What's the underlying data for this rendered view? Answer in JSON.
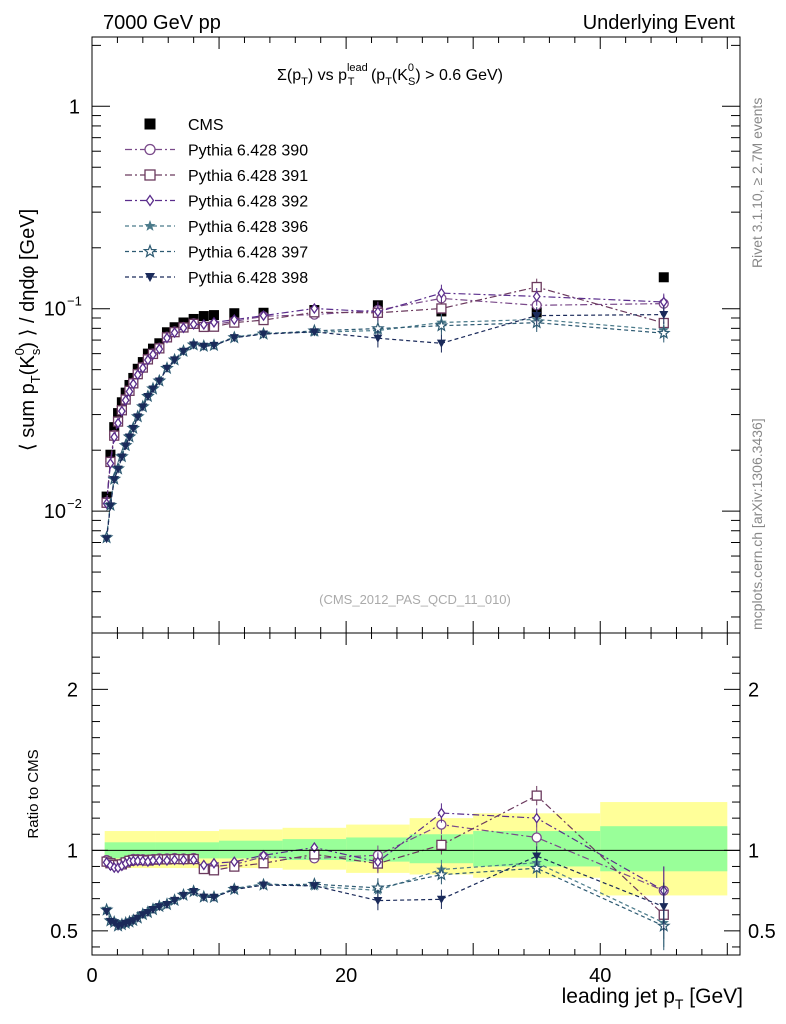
{
  "header": {
    "left": "7000 GeV pp",
    "right": "Underlying Event"
  },
  "plot_title": {
    "main": "Σ(p",
    "sub_T1": "T",
    "mid": ") vs p",
    "sup_lead": "lead",
    "sub_T2": "T",
    "tail1": " (p",
    "sub_T3": "T",
    "tail2": "(K",
    "sup_0": "0",
    "sub_S": "S",
    "tail3": ") > 0.6 GeV)"
  },
  "ylabel_top": {
    "a": "⟨ sum p",
    "sub_T": "T",
    "b": "(K",
    "sup_0": "0",
    "sub_s": "s",
    "c": ") ⟩ / dηdφ [GeV]"
  },
  "ylabel_bottom": "Ratio to CMS",
  "xlabel": {
    "a": "leading jet p",
    "sub": "T",
    "b": " [GeV]"
  },
  "side_text_top": "Rivet 3.1.10, ≥ 2.7M events",
  "side_text_bottom": "mcplots.cern.ch [arXiv:1306.3436]",
  "watermark": "(CMS_2012_PAS_QCD_11_010)",
  "colors": {
    "cms": "#000000",
    "p390": "#7a4a8a",
    "p391": "#6b3a5e",
    "p392": "#5a2d8c",
    "p396": "#4a7a8a",
    "p397": "#2d5a72",
    "p398": "#1a2a5a",
    "band_inner": "#99ff99",
    "band_outer": "#ffff99"
  },
  "chart_data": [
    {
      "type": "scatter",
      "panel": "main",
      "yscale": "log",
      "xlim": [
        0,
        51
      ],
      "ylim": [
        0.0025,
        2.2
      ],
      "y_ticklabels": [
        {
          "value": 1,
          "label": "1"
        },
        {
          "value": 0.1,
          "label": "10",
          "exp": "−1"
        },
        {
          "value": 0.01,
          "label": "10",
          "exp": "−2"
        }
      ],
      "x": [
        1.15,
        1.45,
        1.75,
        2.05,
        2.35,
        2.65,
        2.95,
        3.25,
        3.6,
        4.0,
        4.4,
        4.8,
        5.3,
        5.9,
        6.5,
        7.2,
        8.0,
        8.8,
        9.6,
        11.2,
        13.5,
        17.5,
        22.5,
        27.5,
        35.0,
        45.0
      ],
      "series": [
        {
          "name": "CMS",
          "marker": "filled-square",
          "line": "none",
          "values": [
            0.0118,
            0.019,
            0.026,
            0.0305,
            0.0345,
            0.0385,
            0.042,
            0.0455,
            0.0505,
            0.0545,
            0.06,
            0.0635,
            0.0675,
            0.0765,
            0.081,
            0.0855,
            0.089,
            0.092,
            0.093,
            0.095,
            0.0955,
            0.0985,
            0.104,
            0.097,
            0.096,
            0.143
          ]
        },
        {
          "name": "Pythia 6.428 390",
          "marker": "open-circle",
          "line": "dashdot",
          "values": [
            0.0111,
            0.0176,
            0.0238,
            0.0278,
            0.0317,
            0.0358,
            0.0395,
            0.0431,
            0.0478,
            0.0515,
            0.0565,
            0.0601,
            0.0641,
            0.0727,
            0.0771,
            0.0812,
            0.0847,
            0.0818,
            0.0837,
            0.0866,
            0.0917,
            0.0935,
            0.0985,
            0.1125,
            0.104,
            0.106
          ]
        },
        {
          "name": "Pythia 6.428 391",
          "marker": "open-square",
          "line": "dashdot",
          "values": [
            0.011,
            0.0175,
            0.0236,
            0.0277,
            0.0315,
            0.0356,
            0.0393,
            0.0428,
            0.0475,
            0.0512,
            0.0562,
            0.0598,
            0.0637,
            0.0722,
            0.0766,
            0.0808,
            0.0842,
            0.0813,
            0.0815,
            0.0854,
            0.0879,
            0.096,
            0.0955,
            0.1003,
            0.128,
            0.085
          ]
        },
        {
          "name": "Pythia 6.428 392",
          "marker": "open-diamond",
          "line": "dashdot",
          "values": [
            0.0109,
            0.0172,
            0.0232,
            0.0272,
            0.0312,
            0.0353,
            0.039,
            0.0425,
            0.0472,
            0.0509,
            0.0558,
            0.0594,
            0.0632,
            0.0717,
            0.0762,
            0.0804,
            0.0837,
            0.0836,
            0.0856,
            0.0883,
            0.0925,
            0.1003,
            0.0965,
            0.1195,
            0.115,
            0.108
          ]
        },
        {
          "name": "Pythia 6.428 396",
          "marker": "filled-star",
          "line": "dashed",
          "values": [
            0.0075,
            0.0108,
            0.0146,
            0.0164,
            0.0188,
            0.0213,
            0.0236,
            0.026,
            0.0296,
            0.0331,
            0.0373,
            0.0406,
            0.0444,
            0.0512,
            0.0563,
            0.0621,
            0.0668,
            0.0657,
            0.0664,
            0.0725,
            0.0757,
            0.0765,
            0.0781,
            0.0855,
            0.0886,
            0.0785
          ]
        },
        {
          "name": "Pythia 6.428 397",
          "marker": "open-star",
          "line": "dashed",
          "values": [
            0.0074,
            0.0107,
            0.0144,
            0.0162,
            0.0186,
            0.0211,
            0.0233,
            0.0257,
            0.0293,
            0.0328,
            0.0369,
            0.0402,
            0.044,
            0.0508,
            0.0559,
            0.0617,
            0.0663,
            0.0653,
            0.0659,
            0.072,
            0.075,
            0.0778,
            0.0798,
            0.0824,
            0.0853,
            0.0757
          ]
        },
        {
          "name": "Pythia 6.428 398",
          "marker": "filled-triangle-down",
          "line": "dashed",
          "values": [
            0.0073,
            0.0106,
            0.0143,
            0.0161,
            0.0185,
            0.021,
            0.0232,
            0.0256,
            0.0292,
            0.0327,
            0.0368,
            0.0401,
            0.0439,
            0.0507,
            0.0558,
            0.0616,
            0.0662,
            0.0652,
            0.0658,
            0.0719,
            0.0749,
            0.0768,
            0.0715,
            0.0675,
            0.0925,
            0.0935
          ]
        }
      ]
    },
    {
      "type": "scatter",
      "panel": "ratio",
      "yscale": "linear",
      "xlim": [
        0,
        51
      ],
      "ylim": [
        0.35,
        2.35
      ],
      "x_ticklabels": [
        "0",
        "20",
        "40"
      ],
      "x_ticks": [
        0,
        20,
        40
      ],
      "y_ticklabels": [
        "0.5",
        "1",
        "2"
      ],
      "y_ticks": [
        0.5,
        1,
        2
      ],
      "bands": {
        "edges": [
          1.0,
          5.0,
          10.0,
          15.0,
          20.0,
          25.0,
          30.0,
          40.0,
          50.0
        ],
        "inner": [
          [
            0.95,
            1.05
          ],
          [
            0.95,
            1.05
          ],
          [
            0.95,
            1.06
          ],
          [
            0.94,
            1.07
          ],
          [
            0.93,
            1.08
          ],
          [
            0.92,
            1.1
          ],
          [
            0.9,
            1.12
          ],
          [
            0.87,
            1.15
          ],
          [
            0.85,
            1.2
          ]
        ],
        "outer": [
          [
            0.89,
            1.12
          ],
          [
            0.89,
            1.12
          ],
          [
            0.89,
            1.13
          ],
          [
            0.88,
            1.14
          ],
          [
            0.86,
            1.16
          ],
          [
            0.85,
            1.2
          ],
          [
            0.83,
            1.23
          ],
          [
            0.72,
            1.3
          ],
          [
            0.68,
            1.42
          ]
        ]
      },
      "series": [
        {
          "name": "Pythia 6.428 390",
          "values": [
            0.94,
            0.925,
            0.915,
            0.912,
            0.919,
            0.93,
            0.94,
            0.947,
            0.946,
            0.945,
            0.942,
            0.946,
            0.95,
            0.95,
            0.952,
            0.95,
            0.952,
            0.89,
            0.9,
            0.912,
            0.96,
            0.95,
            0.97,
            1.16,
            1.08,
            0.75
          ]
        },
        {
          "name": "Pythia 6.428 391",
          "values": [
            0.93,
            0.92,
            0.91,
            0.908,
            0.913,
            0.925,
            0.935,
            0.94,
            0.94,
            0.94,
            0.937,
            0.942,
            0.944,
            0.944,
            0.946,
            0.945,
            0.946,
            0.884,
            0.876,
            0.899,
            0.92,
            0.975,
            0.918,
            1.034,
            1.34,
            0.6
          ]
        },
        {
          "name": "Pythia 6.428 392",
          "values": [
            0.925,
            0.905,
            0.893,
            0.891,
            0.904,
            0.918,
            0.929,
            0.934,
            0.934,
            0.934,
            0.93,
            0.936,
            0.936,
            0.937,
            0.941,
            0.94,
            0.94,
            0.909,
            0.92,
            0.929,
            0.969,
            1.018,
            0.928,
            1.232,
            1.2,
            0.75
          ]
        },
        {
          "name": "Pythia 6.428 396",
          "values": [
            0.638,
            0.568,
            0.561,
            0.538,
            0.545,
            0.553,
            0.562,
            0.571,
            0.586,
            0.607,
            0.622,
            0.639,
            0.658,
            0.669,
            0.695,
            0.726,
            0.751,
            0.714,
            0.714,
            0.763,
            0.793,
            0.777,
            0.751,
            0.881,
            0.923,
            0.55
          ]
        },
        {
          "name": "Pythia 6.428 397",
          "values": [
            0.63,
            0.563,
            0.554,
            0.531,
            0.539,
            0.548,
            0.555,
            0.565,
            0.58,
            0.602,
            0.615,
            0.633,
            0.652,
            0.664,
            0.69,
            0.722,
            0.745,
            0.71,
            0.709,
            0.758,
            0.785,
            0.79,
            0.767,
            0.849,
            0.889,
            0.53
          ]
        },
        {
          "name": "Pythia 6.428 398",
          "values": [
            0.62,
            0.558,
            0.55,
            0.528,
            0.536,
            0.545,
            0.552,
            0.563,
            0.578,
            0.6,
            0.613,
            0.632,
            0.65,
            0.663,
            0.689,
            0.72,
            0.744,
            0.709,
            0.708,
            0.757,
            0.784,
            0.78,
            0.688,
            0.696,
            0.964,
            0.65
          ]
        }
      ]
    }
  ]
}
